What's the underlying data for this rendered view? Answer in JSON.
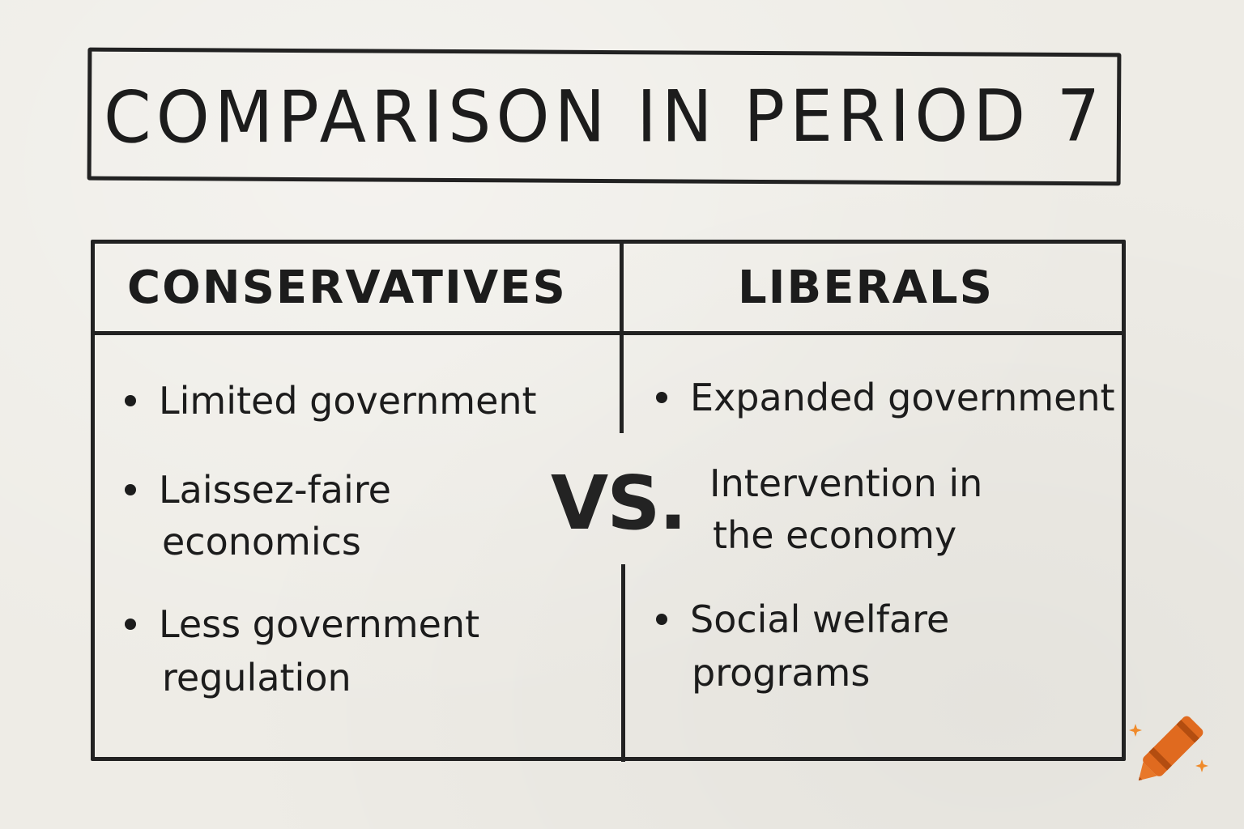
{
  "title": "COMPARISON IN PERIOD 7",
  "columns": [
    {
      "heading": "CONSERVATIVES",
      "items": [
        "Limited government",
        "Laissez-faire",
        "economics",
        "Less government",
        "regulation"
      ]
    },
    {
      "heading": "LIBERALS",
      "items": [
        "Expanded government",
        "Intervention in",
        "the economy",
        "Social welfare",
        "programs"
      ]
    }
  ],
  "versus": "VS.",
  "colors": {
    "paper": "#eeece6",
    "ink": "#1c1c1c",
    "crayon": "#e06a1f",
    "sparkle": "#f08a2a"
  },
  "icons": {
    "logo": "crayon-icon"
  }
}
